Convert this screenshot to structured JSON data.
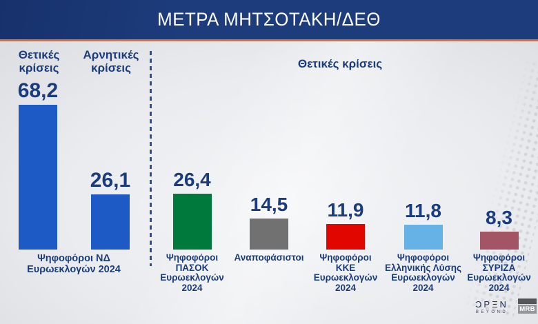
{
  "header": {
    "title": "ΜΕΤΡΑ ΜΗΤΣΟΤΑΚΗ/ΔΕΘ"
  },
  "left_section": {
    "col_headers": [
      "Θετικές κρίσεις",
      "Αρνητικές κρίσεις"
    ],
    "bars": [
      {
        "measure": "Θετικές κρίσεις",
        "value": 68.2,
        "value_label": "68,2",
        "color": "#1e5ac6"
      },
      {
        "measure": "Αρνητικές κρίσεις",
        "value": 26.1,
        "value_label": "26,1",
        "color": "#1e5ac6"
      }
    ],
    "group_label_lines": [
      "Ψηφοφόροι ΝΔ",
      "Ευρωεκλογών 2024"
    ]
  },
  "right_section": {
    "header": "Θετικές κρίσεις",
    "bars": [
      {
        "value": 26.4,
        "value_label": "26,4",
        "color": "#00793c",
        "label_lines": [
          "Ψηφοφόροι",
          "ΠΑΣΟΚ",
          "Ευρωεκλογών",
          "2024"
        ]
      },
      {
        "value": 14.5,
        "value_label": "14,5",
        "color": "#717171",
        "label_lines": [
          "Αναποφάσιστοι"
        ]
      },
      {
        "value": 11.9,
        "value_label": "11,9",
        "color": "#e10600",
        "label_lines": [
          "Ψηφοφόροι",
          "ΚΚΕ",
          "Ευρωεκλογών",
          "2024"
        ]
      },
      {
        "value": 11.8,
        "value_label": "11,8",
        "color": "#66b2e6",
        "label_lines": [
          "Ψηφοφόροι",
          "Ελληνικής Λύσης",
          "Ευρωεκλογών",
          "2024"
        ]
      },
      {
        "value": 8.3,
        "value_label": "8,3",
        "color": "#a35565",
        "label_lines": [
          "Ψηφοφόροι",
          "ΣΥΡΙΖΑ",
          "Ευρωεκλογών",
          "2024"
        ]
      }
    ]
  },
  "logos": {
    "open_name": "OPEN",
    "open_display": "ƆPΞN",
    "open_sub": "BEYOND",
    "mrb_text": "MRB"
  },
  "colors": {
    "header_bg": "#1d3c7c",
    "accent_orange": "#e36f28",
    "text_navy": "#1a3c7d",
    "nd_blue": "#1e5ac6",
    "pasok_green": "#00793c",
    "undecided_gray": "#717171",
    "kke_red": "#e10600",
    "elliniki_lysi_lightblue": "#66b2e6",
    "syriza_maroon": "#a35565"
  },
  "chart_data": {
    "type": "bar",
    "title": "ΜΕΤΡΑ ΜΗΤΣΟΤΑΚΗ/ΔΕΘ",
    "ylim": [
      0,
      70
    ],
    "grid": false,
    "value_format": "comma-decimal",
    "points": [
      {
        "group": "Ψηφοφόροι ΝΔ Ευρωεκλογών 2024",
        "measure": "Θετικές κρίσεις",
        "value": 68.2,
        "color": "#1e5ac6"
      },
      {
        "group": "Ψηφοφόροι ΝΔ Ευρωεκλογών 2024",
        "measure": "Αρνητικές κρίσεις",
        "value": 26.1,
        "color": "#1e5ac6"
      },
      {
        "group": "Ψηφοφόροι ΠΑΣΟΚ Ευρωεκλογών 2024",
        "measure": "Θετικές κρίσεις",
        "value": 26.4,
        "color": "#00793c"
      },
      {
        "group": "Αναποφάσιστοι",
        "measure": "Θετικές κρίσεις",
        "value": 14.5,
        "color": "#717171"
      },
      {
        "group": "Ψηφοφόροι ΚΚΕ Ευρωεκλογών 2024",
        "measure": "Θετικές κρίσεις",
        "value": 11.9,
        "color": "#e10600"
      },
      {
        "group": "Ψηφοφόροι Ελληνικής Λύσης Ευρωεκλογών 2024",
        "measure": "Θετικές κρίσεις",
        "value": 11.8,
        "color": "#66b2e6"
      },
      {
        "group": "Ψηφοφόροι ΣΥΡΙΖΑ Ευρωεκλογών 2024",
        "measure": "Θετικές κρίσεις",
        "value": 8.3,
        "color": "#a35565"
      }
    ]
  }
}
